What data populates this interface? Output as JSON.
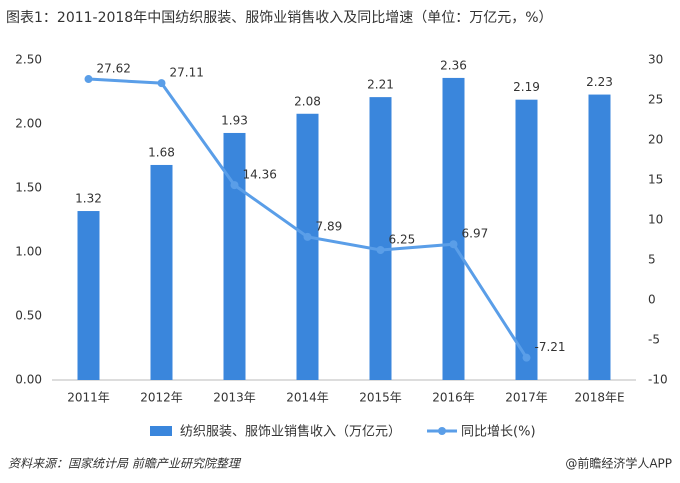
{
  "chart_data": {
    "type": "bar_line",
    "title": "图表1：2011-2018年中国纺织服装、服饰业销售收入及同比增速（单位：万亿元，%）",
    "categories": [
      "2011年",
      "2012年",
      "2013年",
      "2014年",
      "2015年",
      "2016年",
      "2017年",
      "2018年E"
    ],
    "series": [
      {
        "name": "纺织服装、服饰业销售收入（万亿元）",
        "type": "bar",
        "color": "#3a86dc",
        "values": [
          1.32,
          1.68,
          1.93,
          2.08,
          2.21,
          2.36,
          2.19,
          2.23
        ]
      },
      {
        "name": "同比增长(%)",
        "type": "line",
        "axis": "y2",
        "color": "#5a9ee8",
        "values": [
          27.62,
          27.11,
          14.36,
          7.89,
          6.25,
          6.97,
          -7.21,
          null
        ]
      }
    ],
    "ylim": [
      0,
      2.5
    ],
    "yticks": [
      {
        "value": 0,
        "label": "0.00"
      },
      {
        "value": 0.5,
        "label": "0.50"
      },
      {
        "value": 1,
        "label": "1.00"
      },
      {
        "value": 1.5,
        "label": "1.50"
      },
      {
        "value": 2,
        "label": "2.00"
      },
      {
        "value": 2.5,
        "label": "2.50"
      }
    ],
    "y2lim": [
      -10,
      30
    ],
    "y2ticks": [
      -10,
      -5,
      0,
      5,
      10,
      15,
      20,
      25,
      30
    ],
    "source": "资料来源：国家统计局 前瞻产业研究院整理",
    "footer": "@前瞻经济学人APP"
  }
}
